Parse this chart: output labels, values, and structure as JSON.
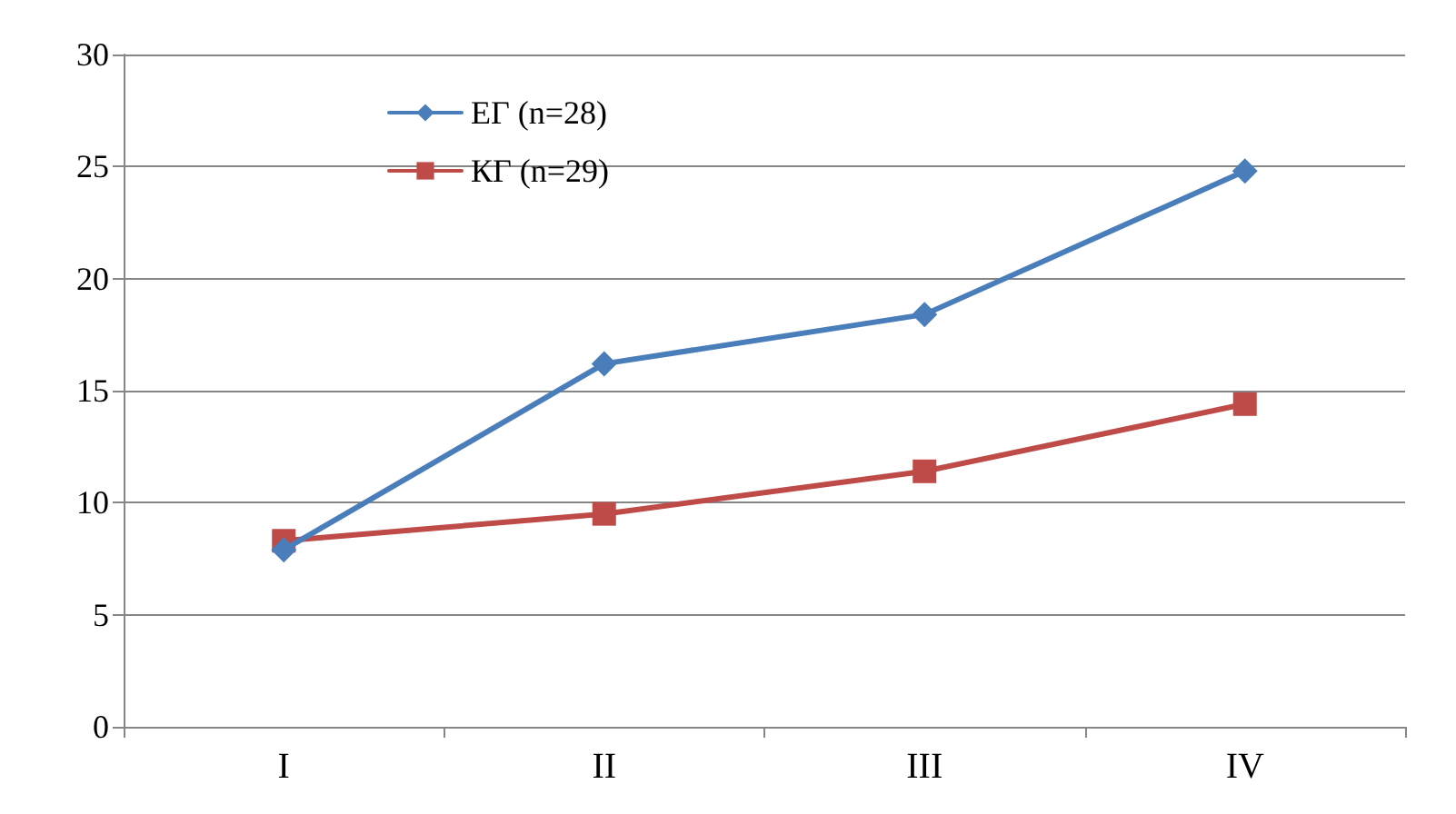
{
  "chart_data": {
    "type": "line",
    "categories": [
      "I",
      "II",
      "III",
      "IV"
    ],
    "series": [
      {
        "name": "ЕГ (n=28)",
        "color": "#4a7ebb",
        "marker": "diamond",
        "values": [
          7.9,
          16.2,
          18.4,
          24.8
        ]
      },
      {
        "name": "КГ (n=29)",
        "color": "#be4b48",
        "marker": "square",
        "values": [
          8.3,
          9.5,
          11.4,
          14.4
        ]
      }
    ],
    "ylim": [
      0,
      30
    ],
    "yticks": [
      0,
      5,
      10,
      15,
      20,
      25,
      30
    ],
    "grid": "y",
    "legend": "top left",
    "line_style": "solid"
  }
}
